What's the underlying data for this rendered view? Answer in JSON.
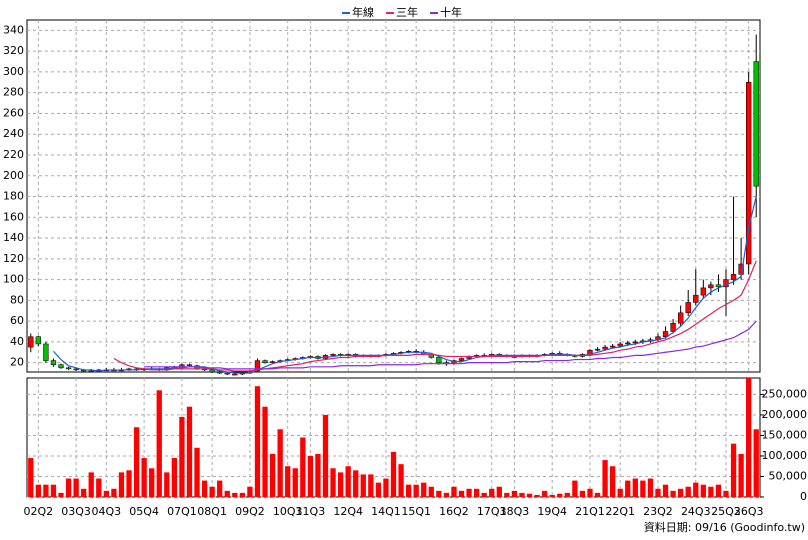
{
  "chart_data": {
    "type": "candlestick",
    "footnote": "資料日期: 09/16  (Goodinfo.tw)",
    "categories": [
      null,
      "02Q2",
      null,
      null,
      null,
      null,
      "03Q3",
      null,
      null,
      null,
      "04Q3",
      null,
      null,
      null,
      null,
      "05Q4",
      null,
      null,
      null,
      null,
      "07Q1",
      null,
      null,
      null,
      "08Q1",
      null,
      null,
      null,
      null,
      "09Q2",
      null,
      null,
      null,
      null,
      "10Q3",
      null,
      null,
      "11Q3",
      null,
      null,
      null,
      null,
      "12Q4",
      null,
      null,
      null,
      null,
      "14Q1",
      null,
      null,
      null,
      "15Q1",
      null,
      null,
      null,
      null,
      "16Q2",
      null,
      null,
      null,
      null,
      "17Q3",
      null,
      null,
      "18Q3",
      null,
      null,
      null,
      null,
      "19Q4",
      null,
      null,
      null,
      null,
      "21Q1",
      null,
      null,
      null,
      "22Q1",
      null,
      null,
      null,
      null,
      "23Q2",
      null,
      null,
      null,
      null,
      "24Q3",
      null,
      null,
      null,
      "25Q3",
      null,
      null,
      "26Q3",
      null
    ],
    "open": [
      35,
      45,
      38,
      22,
      18,
      15,
      14,
      13,
      12,
      12,
      13,
      13,
      13,
      13,
      14,
      13,
      14,
      14,
      13,
      15,
      16,
      18,
      17,
      14,
      13,
      11,
      10,
      9,
      9,
      10,
      12,
      22,
      20,
      21,
      22,
      23,
      24,
      25,
      26,
      24,
      27,
      28,
      27,
      28,
      26,
      27,
      26,
      27,
      28,
      29,
      30,
      31,
      30,
      28,
      25,
      20,
      19,
      22,
      24,
      26,
      27,
      27,
      28,
      27,
      26,
      26,
      27,
      26,
      27,
      28,
      29,
      28,
      27,
      26,
      28,
      32,
      33,
      35,
      36,
      38,
      39,
      40,
      41,
      42,
      45,
      50,
      58,
      68,
      78,
      85,
      92,
      95,
      93,
      100,
      105,
      115,
      310
    ],
    "high": [
      48,
      46,
      40,
      24,
      19,
      16,
      15,
      14,
      14,
      14,
      15,
      15,
      15,
      15,
      15,
      15,
      16,
      15,
      16,
      17,
      19,
      19,
      18,
      15,
      14,
      12,
      11,
      10,
      11,
      13,
      24,
      23,
      22,
      23,
      24,
      25,
      26,
      27,
      27,
      28,
      29,
      29,
      29,
      29,
      28,
      28,
      28,
      29,
      30,
      31,
      32,
      33,
      32,
      29,
      26,
      22,
      23,
      25,
      27,
      28,
      29,
      29,
      29,
      28,
      28,
      28,
      28,
      28,
      29,
      30,
      31,
      29,
      28,
      29,
      33,
      35,
      37,
      38,
      40,
      41,
      42,
      43,
      44,
      48,
      55,
      62,
      75,
      90,
      110,
      100,
      98,
      105,
      110,
      180,
      140,
      300,
      336
    ],
    "low": [
      30,
      36,
      20,
      16,
      14,
      13,
      12,
      11,
      11,
      11,
      12,
      12,
      12,
      12,
      12,
      12,
      13,
      12,
      12,
      14,
      15,
      16,
      13,
      12,
      10,
      9,
      8,
      8,
      8,
      9,
      11,
      19,
      19,
      20,
      21,
      22,
      23,
      24,
      23,
      23,
      26,
      26,
      26,
      25,
      25,
      25,
      25,
      26,
      27,
      28,
      29,
      29,
      27,
      24,
      18,
      17,
      18,
      21,
      23,
      25,
      25,
      26,
      26,
      25,
      25,
      25,
      25,
      25,
      26,
      27,
      27,
      26,
      25,
      25,
      27,
      31,
      32,
      34,
      35,
      36,
      37,
      38,
      39,
      40,
      43,
      48,
      55,
      65,
      75,
      82,
      85,
      88,
      65,
      95,
      100,
      105,
      160
    ],
    "close": [
      45,
      38,
      22,
      18,
      15,
      14,
      13,
      12,
      12,
      13,
      13,
      13,
      13,
      14,
      13,
      14,
      14,
      13,
      15,
      16,
      18,
      17,
      14,
      13,
      11,
      10,
      9,
      9,
      10,
      12,
      22,
      20,
      21,
      22,
      23,
      24,
      25,
      26,
      24,
      27,
      28,
      27,
      28,
      26,
      27,
      26,
      27,
      28,
      29,
      30,
      31,
      30,
      28,
      25,
      20,
      19,
      22,
      24,
      26,
      27,
      27,
      28,
      27,
      26,
      26,
      27,
      26,
      27,
      28,
      29,
      28,
      27,
      26,
      28,
      32,
      33,
      35,
      36,
      38,
      39,
      40,
      41,
      42,
      45,
      50,
      58,
      68,
      78,
      85,
      92,
      95,
      93,
      100,
      105,
      115,
      290,
      190
    ],
    "up_color": "#ff0000",
    "down_color": "#00c000",
    "series": [
      {
        "name": "年線",
        "color": "#1f5fd0",
        "values": [
          null,
          null,
          null,
          31,
          23,
          17,
          15,
          13,
          13,
          12,
          13,
          13,
          13,
          13,
          13,
          14,
          14,
          14,
          14,
          15,
          15,
          16,
          16,
          16,
          14,
          12,
          11,
          10,
          10,
          10,
          13,
          16,
          19,
          21,
          22,
          23,
          24,
          25,
          25,
          25,
          26,
          27,
          27,
          27,
          27,
          27,
          27,
          27,
          28,
          29,
          30,
          30,
          30,
          29,
          26,
          23,
          21,
          21,
          23,
          25,
          26,
          27,
          27,
          27,
          27,
          27,
          27,
          27,
          27,
          28,
          28,
          28,
          27,
          27,
          28,
          30,
          32,
          34,
          35,
          37,
          38,
          40,
          41,
          42,
          44,
          49,
          55,
          63,
          73,
          82,
          88,
          92,
          95,
          98,
          103,
          150,
          180
        ]
      },
      {
        "name": "三年",
        "color": "#e0206a",
        "values": [
          null,
          null,
          null,
          null,
          null,
          null,
          null,
          null,
          null,
          null,
          null,
          24,
          20,
          17,
          15,
          14,
          13,
          13,
          13,
          14,
          14,
          14,
          14,
          14,
          14,
          13,
          13,
          12,
          12,
          12,
          13,
          14,
          15,
          16,
          17,
          18,
          19,
          21,
          22,
          23,
          24,
          25,
          25,
          26,
          26,
          26,
          26,
          27,
          27,
          27,
          27,
          28,
          28,
          28,
          27,
          26,
          26,
          26,
          26,
          26,
          26,
          26,
          26,
          26,
          26,
          26,
          26,
          26,
          27,
          27,
          27,
          27,
          27,
          27,
          27,
          28,
          29,
          30,
          32,
          33,
          35,
          36,
          38,
          40,
          42,
          45,
          48,
          52,
          57,
          62,
          67,
          72,
          76,
          80,
          85,
          100,
          118
        ]
      },
      {
        "name": "十年",
        "color": "#8a2be2",
        "values": [
          null,
          null,
          null,
          null,
          null,
          null,
          null,
          null,
          null,
          null,
          null,
          null,
          null,
          null,
          null,
          16,
          16,
          16,
          16,
          16,
          16,
          16,
          16,
          15,
          15,
          15,
          14,
          14,
          14,
          14,
          14,
          14,
          14,
          15,
          15,
          15,
          15,
          16,
          16,
          16,
          16,
          17,
          17,
          17,
          17,
          17,
          18,
          18,
          18,
          18,
          18,
          18,
          19,
          19,
          19,
          19,
          19,
          19,
          20,
          20,
          20,
          20,
          20,
          20,
          21,
          21,
          21,
          21,
          22,
          22,
          22,
          22,
          23,
          23,
          23,
          24,
          24,
          25,
          25,
          26,
          27,
          27,
          28,
          29,
          30,
          31,
          32,
          33,
          35,
          36,
          38,
          40,
          42,
          44,
          48,
          52,
          60
        ]
      }
    ],
    "ylim": [
      11,
      350
    ],
    "yticks": [
      20,
      40,
      60,
      80,
      100,
      120,
      140,
      160,
      180,
      200,
      220,
      240,
      260,
      280,
      300,
      320,
      340
    ],
    "volume": {
      "color": "#ff0000",
      "axis": "y2",
      "values": [
        95000,
        30000,
        30000,
        30000,
        10000,
        45000,
        45000,
        20000,
        60000,
        45000,
        15000,
        20000,
        60000,
        65000,
        170000,
        95000,
        70000,
        260000,
        60000,
        95000,
        195000,
        220000,
        120000,
        40000,
        25000,
        40000,
        15000,
        10000,
        10000,
        25000,
        270000,
        220000,
        105000,
        165000,
        75000,
        70000,
        145000,
        100000,
        105000,
        200000,
        70000,
        60000,
        75000,
        65000,
        55000,
        55000,
        35000,
        45000,
        110000,
        80000,
        30000,
        30000,
        35000,
        25000,
        15000,
        10000,
        25000,
        15000,
        20000,
        20000,
        10000,
        20000,
        25000,
        10000,
        15000,
        10000,
        8000,
        5000,
        15000,
        5000,
        8000,
        10000,
        40000,
        15000,
        20000,
        10000,
        90000,
        75000,
        20000,
        40000,
        45000,
        40000,
        45000,
        20000,
        30000,
        15000,
        20000,
        25000,
        35000,
        30000,
        25000,
        30000,
        15000,
        130000,
        105000,
        290000,
        165000
      ]
    },
    "y2lim": [
      0,
      290000
    ],
    "y2ticks": [
      0,
      {
        "value": 50000,
        "label": "50,000"
      },
      {
        "value": 100000,
        "label": "100,000"
      },
      {
        "value": 150000,
        "label": "150,000"
      },
      {
        "value": 200000,
        "label": "200,000"
      },
      {
        "value": 250000,
        "label": "250,000"
      }
    ],
    "grid": true
  }
}
